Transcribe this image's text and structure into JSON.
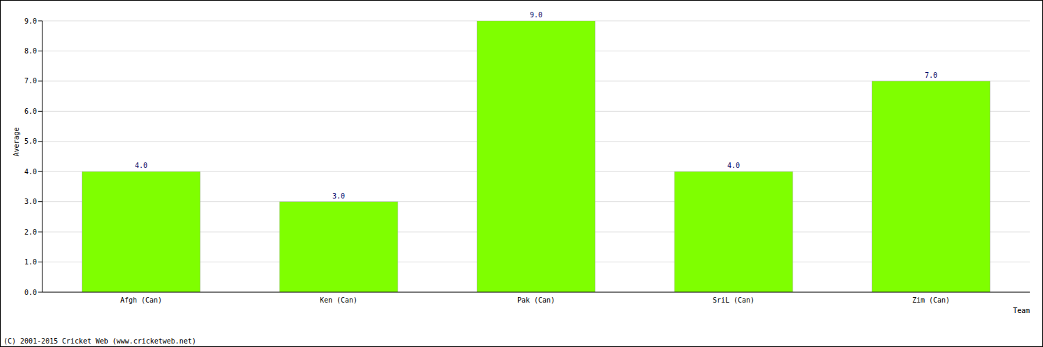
{
  "chart_data": {
    "type": "bar",
    "categories": [
      "Afgh (Can)",
      "Ken (Can)",
      "Pak (Can)",
      "SriL (Can)",
      "Zim (Can)"
    ],
    "values": [
      4,
      3,
      9,
      4,
      7
    ],
    "value_labels": [
      "4.0",
      "3.0",
      "9.0",
      "4.0",
      "7.0"
    ],
    "color": "#7fff00",
    "x_label": "Team",
    "y_label": "Average",
    "footer": "(C) 2001-2015 Cricket Web (www.cricketweb.net)",
    "ylim": [
      0,
      9
    ],
    "yticks": [
      {
        "value": 0,
        "label": "0.0"
      },
      {
        "value": 1,
        "label": "1.0"
      },
      {
        "value": 2,
        "label": "2.0"
      },
      {
        "value": 3,
        "label": "3.0"
      },
      {
        "value": 4,
        "label": "4.0"
      },
      {
        "value": 5,
        "label": "5.0"
      },
      {
        "value": 6,
        "label": "6.0"
      },
      {
        "value": 7,
        "label": "7.0"
      },
      {
        "value": 8,
        "label": "8.0"
      },
      {
        "value": 9,
        "label": "9.0"
      }
    ],
    "grid": true,
    "data_labels": true
  }
}
